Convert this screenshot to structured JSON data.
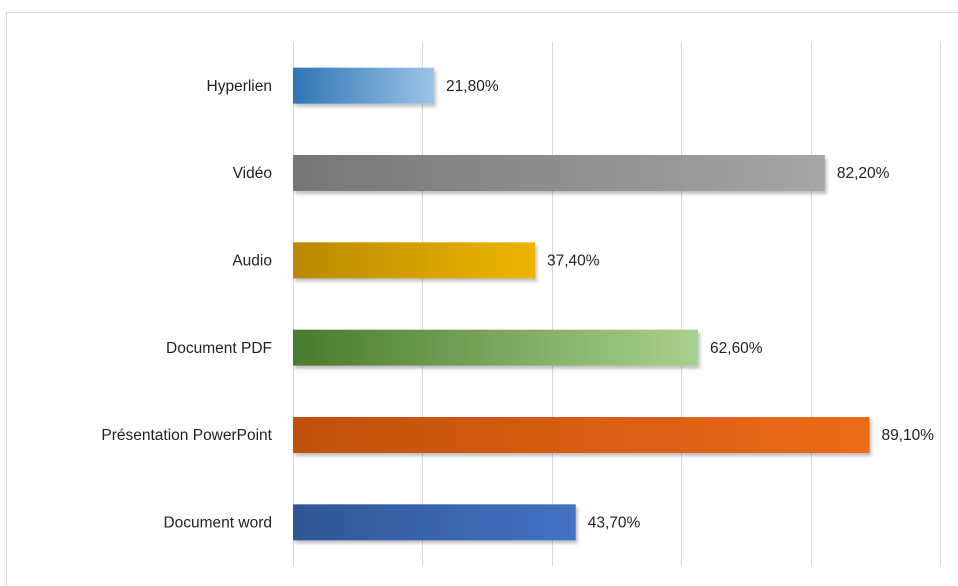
{
  "chart_data": {
    "type": "barh",
    "categories": [
      "Hyperlien",
      "Vidéo",
      "Audio",
      "Document PDF",
      "Présentation PowerPoint",
      "Document word"
    ],
    "values": [
      21.8,
      82.2,
      37.4,
      62.6,
      89.1,
      43.7
    ],
    "value_labels": [
      "21,80%",
      "82,20%",
      "37,40%",
      "62,60%",
      "89,10%",
      "43,70%"
    ],
    "colors": [
      [
        "#2e75b6",
        "#9dc3e6"
      ],
      [
        "#767676",
        "#a6a6a6"
      ],
      [
        "#b88a00",
        "#f0b400"
      ],
      [
        "#4a7a2e",
        "#a9d18e"
      ],
      [
        "#c0500f",
        "#ee6a14"
      ],
      [
        "#2f5597",
        "#4472c4"
      ]
    ],
    "xlim": [
      0,
      100
    ],
    "xticks": [
      0,
      20,
      40,
      60,
      80,
      100
    ],
    "grid": true
  }
}
